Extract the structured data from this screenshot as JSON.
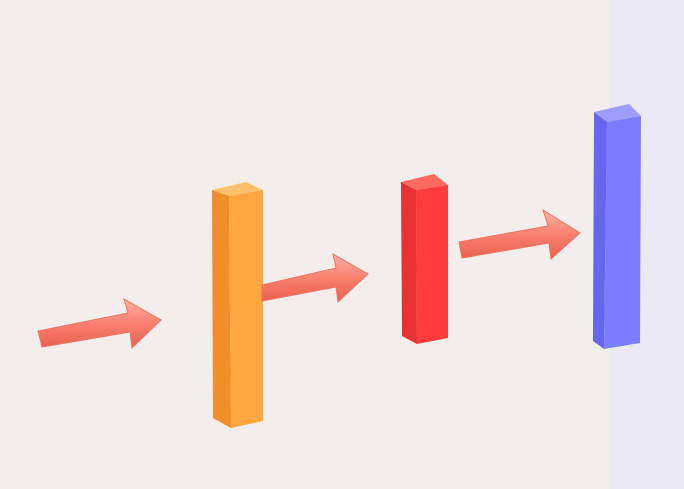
{
  "colors": {
    "background": "#f3eeeb",
    "side_panel": "#ebe9f4",
    "arrow": "#f9806f",
    "arrow_shade": "#e8604f",
    "arrow_light": "#ffb0a3",
    "layer_1": "#ffa640",
    "layer_1_top": "#ffc06a",
    "layer_1_side": "#f08f2a",
    "layer_2": "#ff3c3c",
    "layer_2_top": "#ff6a5e",
    "layer_2_side": "#e83232",
    "layer_3": "#7b7cff",
    "layer_3_top": "#9c9dff",
    "layer_3_side": "#6667ee"
  },
  "diagram": {
    "layers": [
      {
        "id": "layer-1",
        "color_key": "layer_1"
      },
      {
        "id": "layer-2",
        "color_key": "layer_2"
      },
      {
        "id": "layer-3",
        "color_key": "layer_3"
      }
    ],
    "arrows": [
      {
        "id": "arrow-input"
      },
      {
        "id": "arrow-1-2"
      },
      {
        "id": "arrow-2-3"
      }
    ]
  }
}
